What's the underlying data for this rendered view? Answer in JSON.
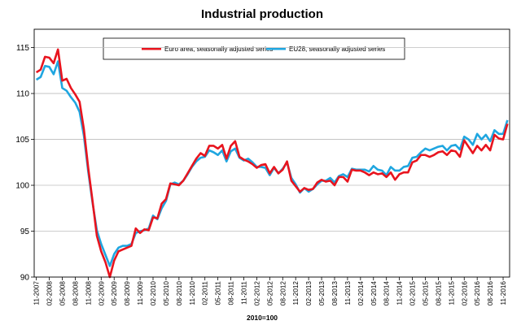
{
  "chart_data": {
    "type": "line",
    "title": "Industrial production",
    "xlabel": "2010=100",
    "ylabel": "",
    "ylim": [
      90,
      117
    ],
    "yticks": [
      90,
      95,
      100,
      105,
      110,
      115
    ],
    "grid": true,
    "legend_position": "top",
    "start": "2007-11",
    "xtick_labels": [
      "11-2007",
      "02-2008",
      "05-2008",
      "08-2008",
      "11-2008",
      "02-2009",
      "05-2009",
      "08-2009",
      "11-2009",
      "02-2010",
      "05-2010",
      "08-2010",
      "11-2010",
      "02-2011",
      "05-2011",
      "08-2011",
      "11-2011",
      "02-2012",
      "05-2012",
      "08-2012",
      "11-2012",
      "02-2013",
      "05-2013",
      "08-2013",
      "11-2013",
      "02-2014",
      "05-2014",
      "08-2014",
      "11-2014",
      "02-2015",
      "05-2015",
      "08-2015",
      "11-2015",
      "02-2016",
      "05-2016",
      "08-2016",
      "11-2016"
    ],
    "series": [
      {
        "name": "Euro area, seasonally adjusted series",
        "color": "#e8141e",
        "values": [
          112.3,
          112.6,
          114.0,
          113.9,
          113.3,
          114.8,
          111.4,
          111.6,
          110.6,
          109.9,
          109.1,
          106.1,
          101.9,
          98.3,
          94.5,
          92.8,
          91.6,
          90.0,
          91.8,
          92.8,
          93.0,
          93.2,
          93.4,
          95.3,
          94.8,
          95.2,
          95.1,
          96.5,
          96.4,
          98.0,
          98.5,
          100.2,
          100.1,
          100.0,
          100.5,
          101.3,
          102.1,
          102.9,
          103.5,
          103.2,
          104.3,
          104.3,
          104.0,
          104.4,
          102.9,
          104.3,
          104.8,
          103.1,
          102.8,
          102.6,
          102.3,
          101.9,
          102.2,
          102.3,
          101.3,
          102.0,
          101.3,
          101.7,
          102.6,
          100.5,
          99.9,
          99.3,
          99.7,
          99.5,
          99.6,
          100.3,
          100.6,
          100.4,
          100.5,
          100.0,
          100.9,
          100.9,
          100.4,
          101.7,
          101.6,
          101.6,
          101.4,
          101.1,
          101.4,
          101.2,
          101.3,
          100.9,
          101.4,
          100.6,
          101.2,
          101.4,
          101.4,
          102.5,
          102.7,
          103.3,
          103.3,
          103.1,
          103.3,
          103.6,
          103.7,
          103.3,
          103.8,
          103.7,
          103.1,
          104.9,
          104.2,
          103.5,
          104.3,
          103.8,
          104.4,
          103.8,
          105.5,
          105.1,
          105.0,
          106.7
        ]
      },
      {
        "name": "EU28, seasonally adjusted series",
        "color": "#1fa6e0",
        "values": [
          111.5,
          111.8,
          113.0,
          112.9,
          112.1,
          113.5,
          110.6,
          110.3,
          109.6,
          109.0,
          108.0,
          105.4,
          101.5,
          98.1,
          95.1,
          93.6,
          92.4,
          91.2,
          92.5,
          93.2,
          93.4,
          93.4,
          93.6,
          94.8,
          95.0,
          95.1,
          95.3,
          96.7,
          96.3,
          97.5,
          98.3,
          100.1,
          100.3,
          100.1,
          100.5,
          101.2,
          102.0,
          102.6,
          103.0,
          103.1,
          103.8,
          103.6,
          103.3,
          103.8,
          102.6,
          103.7,
          104.0,
          103.0,
          102.7,
          102.9,
          102.5,
          102.0,
          102.0,
          101.9,
          101.1,
          101.9,
          101.3,
          101.8,
          102.5,
          100.8,
          100.1,
          99.2,
          99.7,
          99.3,
          99.6,
          100.1,
          100.5,
          100.5,
          100.8,
          100.3,
          101.0,
          101.2,
          100.9,
          101.8,
          101.7,
          101.7,
          101.7,
          101.5,
          102.1,
          101.7,
          101.6,
          101.1,
          102.0,
          101.6,
          101.6,
          102.0,
          102.1,
          103.0,
          103.1,
          103.6,
          104.0,
          103.8,
          104.0,
          104.2,
          104.3,
          103.8,
          104.3,
          104.4,
          103.9,
          105.3,
          105.0,
          104.4,
          105.6,
          105.0,
          105.5,
          104.8,
          106.0,
          105.6,
          105.6,
          107.1
        ]
      }
    ]
  }
}
